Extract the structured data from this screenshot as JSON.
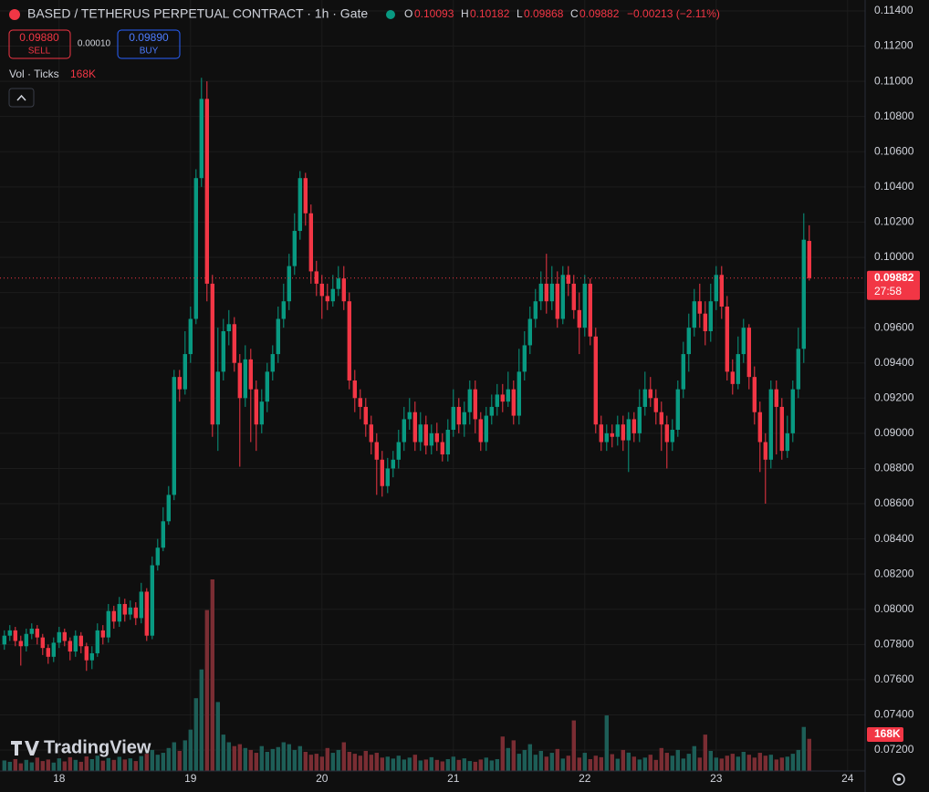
{
  "header": {
    "symbol_title": "BASED / TETHERUS PERPETUAL CONTRACT · 1h · Gate",
    "o_label": "O",
    "h_label": "H",
    "l_label": "L",
    "c_label": "C",
    "change": "−0.00213 (−2.11%)",
    "sell_price": "0.09880",
    "sell_label": "SELL",
    "spread": "0.00010",
    "buy_price": "0.09890",
    "buy_label": "BUY",
    "volume_indicator": "Vol · Ticks",
    "volume_value": "168K",
    "countdown": "27:58",
    "logo": "TradingView"
  },
  "chart_data": {
    "type": "candlestick",
    "grid": true,
    "up_color": "#089981",
    "down_color": "#f23645",
    "up_volume_color": "#1d5e57",
    "down_volume_color": "#7a2d33",
    "xlim": [
      -10.8,
      147.2
    ],
    "xticks": [
      {
        "value": 0,
        "label": "18"
      },
      {
        "value": 24,
        "label": "19"
      },
      {
        "value": 48,
        "label": "20"
      },
      {
        "value": 72,
        "label": "21"
      },
      {
        "value": 96,
        "label": "22"
      },
      {
        "value": 120,
        "label": "23"
      },
      {
        "value": 144,
        "label": "24"
      }
    ],
    "ylim": [
      0.07081,
      0.11462
    ],
    "yticks": [
      {
        "value": 0.072,
        "label": "0.07200"
      },
      {
        "value": 0.074,
        "label": "0.07400"
      },
      {
        "value": 0.076,
        "label": "0.07600"
      },
      {
        "value": 0.078,
        "label": "0.07800"
      },
      {
        "value": 0.08,
        "label": "0.08000"
      },
      {
        "value": 0.082,
        "label": "0.08200"
      },
      {
        "value": 0.084,
        "label": "0.08400"
      },
      {
        "value": 0.086,
        "label": "0.08600"
      },
      {
        "value": 0.088,
        "label": "0.08800"
      },
      {
        "value": 0.09,
        "label": "0.09000"
      },
      {
        "value": 0.092,
        "label": "0.09200"
      },
      {
        "value": 0.094,
        "label": "0.09400"
      },
      {
        "value": 0.096,
        "label": "0.09600"
      },
      {
        "value": 0.098,
        "label": "0.09800"
      },
      {
        "value": 0.1,
        "label": "0.10000"
      },
      {
        "value": 0.102,
        "label": "0.10200"
      },
      {
        "value": 0.104,
        "label": "0.10400"
      },
      {
        "value": 0.106,
        "label": "0.10600"
      },
      {
        "value": 0.108,
        "label": "0.10800"
      },
      {
        "value": 0.11,
        "label": "0.11000"
      },
      {
        "value": 0.112,
        "label": "0.11200"
      },
      {
        "value": 0.114,
        "label": "0.11400"
      }
    ],
    "x": [
      -10,
      -9,
      -8,
      -7,
      -6,
      -5,
      -4,
      -3,
      -2,
      -1,
      0,
      1,
      2,
      3,
      4,
      5,
      6,
      7,
      8,
      9,
      10,
      11,
      12,
      13,
      14,
      15,
      16,
      17,
      18,
      19,
      20,
      21,
      22,
      23,
      24,
      25,
      26,
      27,
      28,
      29,
      30,
      31,
      32,
      33,
      34,
      35,
      36,
      37,
      38,
      39,
      40,
      41,
      42,
      43,
      44,
      45,
      46,
      47,
      48,
      49,
      50,
      51,
      52,
      53,
      54,
      55,
      56,
      57,
      58,
      59,
      60,
      61,
      62,
      63,
      64,
      65,
      66,
      67,
      68,
      69,
      70,
      71,
      72,
      73,
      74,
      75,
      76,
      77,
      78,
      79,
      80,
      81,
      82,
      83,
      84,
      85,
      86,
      87,
      88,
      89,
      90,
      91,
      92,
      93,
      94,
      95,
      96,
      97,
      98,
      99,
      100,
      101,
      102,
      103,
      104,
      105,
      106,
      107,
      108,
      109,
      110,
      111,
      112,
      113,
      114,
      115,
      116,
      117,
      118,
      119,
      120,
      121,
      122,
      123,
      124,
      125,
      126,
      127,
      128,
      129,
      130,
      131,
      132,
      133,
      134,
      135,
      136,
      137
    ],
    "open": [
      0.078,
      0.0785,
      0.0788,
      0.0782,
      0.0779,
      0.0786,
      0.0789,
      0.0784,
      0.0778,
      0.0773,
      0.0781,
      0.0787,
      0.0782,
      0.0776,
      0.0785,
      0.0779,
      0.0771,
      0.0775,
      0.0788,
      0.0784,
      0.0799,
      0.0793,
      0.0803,
      0.0797,
      0.0801,
      0.0795,
      0.081,
      0.0785,
      0.0825,
      0.0835,
      0.085,
      0.0865,
      0.0932,
      0.0925,
      0.0945,
      0.0965,
      0.1045,
      0.109,
      0.0985,
      0.0905,
      0.0935,
      0.0958,
      0.0962,
      0.094,
      0.092,
      0.0942,
      0.0925,
      0.0905,
      0.0918,
      0.0935,
      0.0945,
      0.0965,
      0.0975,
      0.0995,
      0.1015,
      0.1045,
      0.1025,
      0.0992,
      0.0985,
      0.0978,
      0.0975,
      0.0982,
      0.0988,
      0.0975,
      0.093,
      0.092,
      0.0915,
      0.0905,
      0.0895,
      0.0885,
      0.087,
      0.088,
      0.0885,
      0.0895,
      0.0908,
      0.0912,
      0.0895,
      0.0905,
      0.0893,
      0.09,
      0.0895,
      0.0888,
      0.0902,
      0.0915,
      0.0905,
      0.0912,
      0.0925,
      0.0908,
      0.0895,
      0.091,
      0.0915,
      0.0922,
      0.0918,
      0.0925,
      0.091,
      0.0935,
      0.095,
      0.0965,
      0.0975,
      0.0985,
      0.0975,
      0.0985,
      0.0965,
      0.099,
      0.0985,
      0.097,
      0.096,
      0.0985,
      0.0955,
      0.0905,
      0.0895,
      0.09,
      0.0898,
      0.0905,
      0.0896,
      0.0908,
      0.09,
      0.0915,
      0.0925,
      0.092,
      0.0912,
      0.0905,
      0.0895,
      0.0902,
      0.0925,
      0.0945,
      0.096,
      0.0975,
      0.0968,
      0.0958,
      0.0975,
      0.099,
      0.0972,
      0.0935,
      0.0928,
      0.0945,
      0.096,
      0.0932,
      0.0912,
      0.0895,
      0.0885,
      0.0925,
      0.0915,
      0.089,
      0.09,
      0.0925,
      0.0948,
      0.10093
    ],
    "high": [
      0.0788,
      0.0791,
      0.079,
      0.0785,
      0.0789,
      0.0792,
      0.0791,
      0.0786,
      0.078,
      0.0784,
      0.079,
      0.0789,
      0.0784,
      0.0788,
      0.0787,
      0.0781,
      0.0779,
      0.0792,
      0.0791,
      0.0803,
      0.0802,
      0.0807,
      0.0806,
      0.0805,
      0.0804,
      0.0815,
      0.0812,
      0.083,
      0.084,
      0.0858,
      0.087,
      0.0936,
      0.0936,
      0.0958,
      0.0972,
      0.105,
      0.1102,
      0.11,
      0.099,
      0.096,
      0.0965,
      0.097,
      0.0966,
      0.0945,
      0.095,
      0.0948,
      0.093,
      0.0925,
      0.094,
      0.095,
      0.0972,
      0.0985,
      0.1002,
      0.1025,
      0.1049,
      0.1048,
      0.103,
      0.0998,
      0.099,
      0.0985,
      0.099,
      0.0995,
      0.0995,
      0.098,
      0.0936,
      0.0925,
      0.092,
      0.091,
      0.09,
      0.089,
      0.0886,
      0.089,
      0.0902,
      0.0915,
      0.092,
      0.0918,
      0.0912,
      0.091,
      0.0905,
      0.0906,
      0.09,
      0.0908,
      0.0925,
      0.092,
      0.0918,
      0.093,
      0.093,
      0.0912,
      0.0915,
      0.0922,
      0.0928,
      0.0928,
      0.0935,
      0.093,
      0.0948,
      0.0958,
      0.0972,
      0.0982,
      0.0992,
      0.1002,
      0.0995,
      0.0992,
      0.0995,
      0.0995,
      0.099,
      0.098,
      0.099,
      0.0988,
      0.096,
      0.091,
      0.0905,
      0.0905,
      0.091,
      0.091,
      0.0912,
      0.0912,
      0.0925,
      0.0935,
      0.0932,
      0.0925,
      0.0918,
      0.091,
      0.0908,
      0.093,
      0.0952,
      0.0968,
      0.0982,
      0.0985,
      0.0975,
      0.0985,
      0.0995,
      0.0995,
      0.0978,
      0.0942,
      0.0955,
      0.0965,
      0.0962,
      0.0938,
      0.0918,
      0.09,
      0.093,
      0.093,
      0.092,
      0.091,
      0.093,
      0.096,
      0.1025,
      0.10182
    ],
    "low": [
      0.0777,
      0.0782,
      0.0779,
      0.0768,
      0.0776,
      0.0783,
      0.078,
      0.0774,
      0.0769,
      0.077,
      0.0778,
      0.0779,
      0.0771,
      0.0773,
      0.0775,
      0.0765,
      0.0766,
      0.0773,
      0.078,
      0.0781,
      0.0789,
      0.079,
      0.0793,
      0.0794,
      0.0791,
      0.0792,
      0.0782,
      0.0783,
      0.0822,
      0.0833,
      0.0848,
      0.0862,
      0.0918,
      0.0922,
      0.094,
      0.0962,
      0.104,
      0.0975,
      0.0898,
      0.089,
      0.093,
      0.095,
      0.0935,
      0.0881,
      0.0915,
      0.0895,
      0.089,
      0.09,
      0.0912,
      0.093,
      0.094,
      0.096,
      0.097,
      0.099,
      0.101,
      0.1018,
      0.0985,
      0.0978,
      0.0965,
      0.097,
      0.0972,
      0.0978,
      0.097,
      0.0925,
      0.0912,
      0.0908,
      0.0898,
      0.0888,
      0.0865,
      0.0864,
      0.0866,
      0.0875,
      0.088,
      0.089,
      0.0902,
      0.089,
      0.089,
      0.0888,
      0.0888,
      0.089,
      0.0884,
      0.0884,
      0.0898,
      0.09,
      0.0898,
      0.0905,
      0.09,
      0.089,
      0.089,
      0.0905,
      0.091,
      0.0912,
      0.0915,
      0.0905,
      0.0905,
      0.093,
      0.0945,
      0.096,
      0.097,
      0.0968,
      0.097,
      0.096,
      0.0962,
      0.0978,
      0.0965,
      0.0945,
      0.0955,
      0.095,
      0.09,
      0.089,
      0.089,
      0.0892,
      0.0893,
      0.089,
      0.0878,
      0.0895,
      0.0895,
      0.091,
      0.0915,
      0.0905,
      0.089,
      0.088,
      0.089,
      0.0898,
      0.092,
      0.0935,
      0.0955,
      0.096,
      0.095,
      0.0952,
      0.097,
      0.0965,
      0.093,
      0.0922,
      0.0925,
      0.094,
      0.0925,
      0.0905,
      0.0878,
      0.086,
      0.088,
      0.0888,
      0.0885,
      0.0886,
      0.0895,
      0.092,
      0.094,
      0.09868
    ],
    "close": [
      0.0785,
      0.0788,
      0.0782,
      0.0779,
      0.0786,
      0.0789,
      0.0784,
      0.0778,
      0.0773,
      0.0781,
      0.0787,
      0.0782,
      0.0776,
      0.0785,
      0.0779,
      0.0771,
      0.0775,
      0.0788,
      0.0784,
      0.0799,
      0.0793,
      0.0803,
      0.0797,
      0.0801,
      0.0795,
      0.081,
      0.0785,
      0.0825,
      0.0835,
      0.085,
      0.0865,
      0.0932,
      0.0925,
      0.0945,
      0.0965,
      0.1045,
      0.109,
      0.0985,
      0.0905,
      0.0935,
      0.0958,
      0.0962,
      0.094,
      0.092,
      0.0942,
      0.0925,
      0.0905,
      0.0918,
      0.0935,
      0.0945,
      0.0965,
      0.0975,
      0.0995,
      0.1015,
      0.1045,
      0.1025,
      0.0992,
      0.0985,
      0.0978,
      0.0975,
      0.0982,
      0.0988,
      0.0975,
      0.093,
      0.092,
      0.0915,
      0.0905,
      0.0895,
      0.0885,
      0.087,
      0.088,
      0.0885,
      0.0895,
      0.0908,
      0.0912,
      0.0895,
      0.0905,
      0.0893,
      0.09,
      0.0895,
      0.0888,
      0.0902,
      0.0915,
      0.0905,
      0.0912,
      0.0925,
      0.0908,
      0.0895,
      0.091,
      0.0915,
      0.0922,
      0.0918,
      0.0925,
      0.091,
      0.0935,
      0.095,
      0.0965,
      0.0975,
      0.0985,
      0.0975,
      0.0985,
      0.0965,
      0.099,
      0.0985,
      0.097,
      0.096,
      0.0985,
      0.0955,
      0.0905,
      0.0895,
      0.09,
      0.0898,
      0.0905,
      0.0896,
      0.0908,
      0.09,
      0.0915,
      0.0925,
      0.092,
      0.0912,
      0.0905,
      0.0895,
      0.0902,
      0.0925,
      0.0945,
      0.096,
      0.0975,
      0.0968,
      0.0958,
      0.0975,
      0.099,
      0.0972,
      0.0935,
      0.0928,
      0.0945,
      0.096,
      0.0932,
      0.0912,
      0.0895,
      0.0885,
      0.0925,
      0.0915,
      0.089,
      0.09,
      0.0925,
      0.0948,
      0.101,
      0.09882
    ],
    "volume": [
      55000,
      48000,
      62000,
      40000,
      58000,
      45000,
      70000,
      52000,
      60000,
      44000,
      66000,
      50000,
      72000,
      58000,
      48000,
      76000,
      62000,
      80000,
      54000,
      68000,
      58000,
      74000,
      60000,
      66000,
      52000,
      78000,
      90000,
      110000,
      85000,
      95000,
      120000,
      150000,
      105000,
      160000,
      216000,
      380000,
      530000,
      840000,
      1000000,
      360000,
      190000,
      150000,
      130000,
      140000,
      120000,
      110000,
      95000,
      130000,
      100000,
      115000,
      125000,
      150000,
      140000,
      110000,
      130000,
      100000,
      85000,
      90000,
      75000,
      120000,
      95000,
      110000,
      150000,
      100000,
      90000,
      80000,
      105000,
      85000,
      95000,
      70000,
      75000,
      65000,
      80000,
      60000,
      70000,
      85000,
      55000,
      60000,
      72000,
      58000,
      50000,
      62000,
      75000,
      58000,
      66000,
      52000,
      48000,
      60000,
      70000,
      55000,
      62000,
      180000,
      120000,
      160000,
      90000,
      110000,
      140000,
      85000,
      105000,
      75000,
      95000,
      115000,
      65000,
      80000,
      264000,
      70000,
      95000,
      62000,
      80000,
      72000,
      290000,
      88000,
      64000,
      110000,
      96000,
      75000,
      60000,
      70000,
      85000,
      58000,
      120000,
      95000,
      80000,
      110000,
      65000,
      90000,
      130000,
      70000,
      190000,
      105000,
      70000,
      65000,
      80000,
      90000,
      75000,
      100000,
      85000,
      70000,
      95000,
      80000,
      85000,
      60000,
      70000,
      75000,
      90000,
      110000,
      230000,
      168000
    ]
  }
}
